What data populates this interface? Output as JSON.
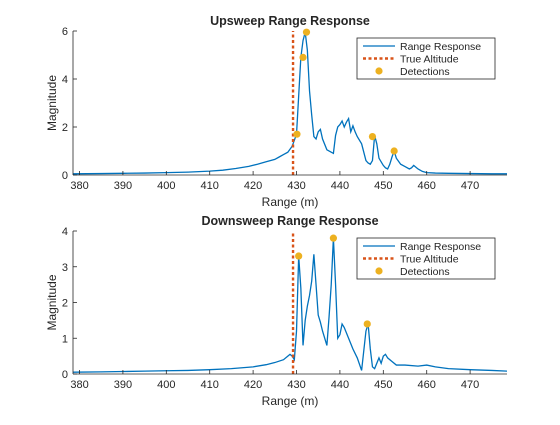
{
  "colors": {
    "range_response": "#0072BD",
    "true_altitude": "#D95319",
    "detections": "#EDB120",
    "axes": "#262626",
    "background": "#ffffff"
  },
  "chart_data": [
    {
      "type": "line",
      "title": "Upsweep Range Response",
      "xlabel": "Range (m)",
      "ylabel": "Magnitude",
      "xlim": [
        378.5,
        478.5
      ],
      "ylim": [
        0,
        6
      ],
      "xticks": [
        380,
        390,
        400,
        410,
        420,
        430,
        440,
        450,
        460,
        470
      ],
      "yticks": [
        0,
        2,
        4,
        6
      ],
      "legend_position": "top-right",
      "legend": [
        "Range Response",
        "True Altitude",
        "Detections"
      ],
      "series": [
        {
          "name": "Range Response",
          "style": "line",
          "color": "#0072BD",
          "x": [
            378.5,
            385,
            390,
            395,
            400,
            405,
            410,
            413,
            416,
            419,
            421,
            423,
            425,
            426,
            427,
            428,
            429,
            430,
            431,
            431.5,
            432,
            432.5,
            433,
            433.5,
            434,
            434.5,
            435,
            435.5,
            436,
            437,
            438,
            438.5,
            439,
            439.5,
            440,
            440.5,
            441,
            441.5,
            442,
            442.5,
            443,
            443.5,
            444,
            445,
            446,
            446.5,
            447,
            447.5,
            448,
            448.5,
            449,
            449.5,
            450,
            450.5,
            451,
            451.5,
            452,
            452.5,
            453,
            454,
            455,
            456,
            456.5,
            457,
            458,
            459,
            460,
            462,
            465,
            470,
            475,
            478.5
          ],
          "y": [
            0.05,
            0.06,
            0.07,
            0.08,
            0.1,
            0.12,
            0.16,
            0.2,
            0.27,
            0.36,
            0.45,
            0.55,
            0.65,
            0.75,
            0.85,
            0.95,
            1.2,
            1.7,
            4.9,
            5.6,
            5.95,
            5.2,
            3.5,
            2.5,
            1.6,
            1.5,
            1.8,
            1.9,
            1.5,
            1.05,
            0.95,
            0.9,
            1.65,
            2.0,
            2.1,
            2.25,
            2.0,
            2.2,
            2.35,
            1.8,
            2.05,
            1.8,
            1.6,
            1.3,
            0.6,
            0.5,
            0.45,
            0.6,
            1.65,
            1.3,
            0.7,
            0.55,
            0.4,
            0.3,
            0.25,
            0.45,
            0.75,
            1.0,
            0.7,
            0.45,
            0.35,
            0.25,
            0.3,
            0.4,
            0.25,
            0.15,
            0.1,
            0.08,
            0.07,
            0.06,
            0.05,
            0.05
          ]
        },
        {
          "name": "True Altitude",
          "style": "dotted-vertical",
          "color": "#D95319",
          "x": [
            429.2,
            429.2
          ],
          "y": [
            0,
            6
          ]
        },
        {
          "name": "Detections",
          "style": "markers",
          "color": "#EDB120",
          "x": [
            430.1,
            431.5,
            432.3,
            447.5,
            452.5
          ],
          "y": [
            1.7,
            4.9,
            5.95,
            1.6,
            1.0
          ]
        }
      ]
    },
    {
      "type": "line",
      "title": "Downsweep Range Response",
      "xlabel": "Range (m)",
      "ylabel": "Magnitude",
      "xlim": [
        378.5,
        478.5
      ],
      "ylim": [
        0,
        4
      ],
      "xticks": [
        380,
        390,
        400,
        410,
        420,
        430,
        440,
        450,
        460,
        470
      ],
      "yticks": [
        0,
        1,
        2,
        3,
        4
      ],
      "legend_position": "top-right",
      "legend": [
        "Range Response",
        "True Altitude",
        "Detections"
      ],
      "series": [
        {
          "name": "Range Response",
          "style": "line",
          "color": "#0072BD",
          "x": [
            378.5,
            385,
            390,
            395,
            400,
            405,
            410,
            415,
            420,
            423,
            425,
            427,
            428,
            428.5,
            429,
            429.5,
            430,
            430.5,
            431,
            431.5,
            432,
            432.5,
            433,
            433.5,
            434,
            434.5,
            435,
            435.5,
            436,
            437,
            437.5,
            438,
            438.5,
            439,
            439.5,
            440,
            440.5,
            441,
            442,
            443,
            444,
            445,
            446,
            446.5,
            447,
            447.5,
            448,
            448.5,
            449,
            449.5,
            450,
            450.5,
            451,
            452,
            453,
            455,
            458,
            460,
            462,
            465,
            470,
            475,
            478.5
          ],
          "y": [
            0.05,
            0.06,
            0.07,
            0.08,
            0.09,
            0.1,
            0.12,
            0.15,
            0.2,
            0.26,
            0.32,
            0.4,
            0.5,
            0.55,
            0.5,
            0.4,
            1.2,
            3.3,
            2.4,
            0.8,
            1.5,
            1.9,
            2.2,
            2.6,
            3.35,
            2.5,
            1.65,
            1.45,
            1.2,
            0.8,
            1.6,
            2.5,
            3.8,
            2.5,
            1.0,
            1.1,
            1.4,
            1.3,
            1.0,
            0.7,
            0.45,
            0.1,
            1.2,
            1.4,
            0.7,
            0.2,
            0.15,
            0.3,
            0.45,
            0.3,
            0.5,
            0.55,
            0.45,
            0.35,
            0.25,
            0.25,
            0.22,
            0.25,
            0.2,
            0.15,
            0.12,
            0.1,
            0.08
          ]
        },
        {
          "name": "True Altitude",
          "style": "dotted-vertical",
          "color": "#D95319",
          "x": [
            429.2,
            429.2
          ],
          "y": [
            0,
            4
          ]
        },
        {
          "name": "Detections",
          "style": "markers",
          "color": "#EDB120",
          "x": [
            430.5,
            438.5,
            446.3
          ],
          "y": [
            3.3,
            3.8,
            1.4
          ]
        }
      ]
    }
  ]
}
